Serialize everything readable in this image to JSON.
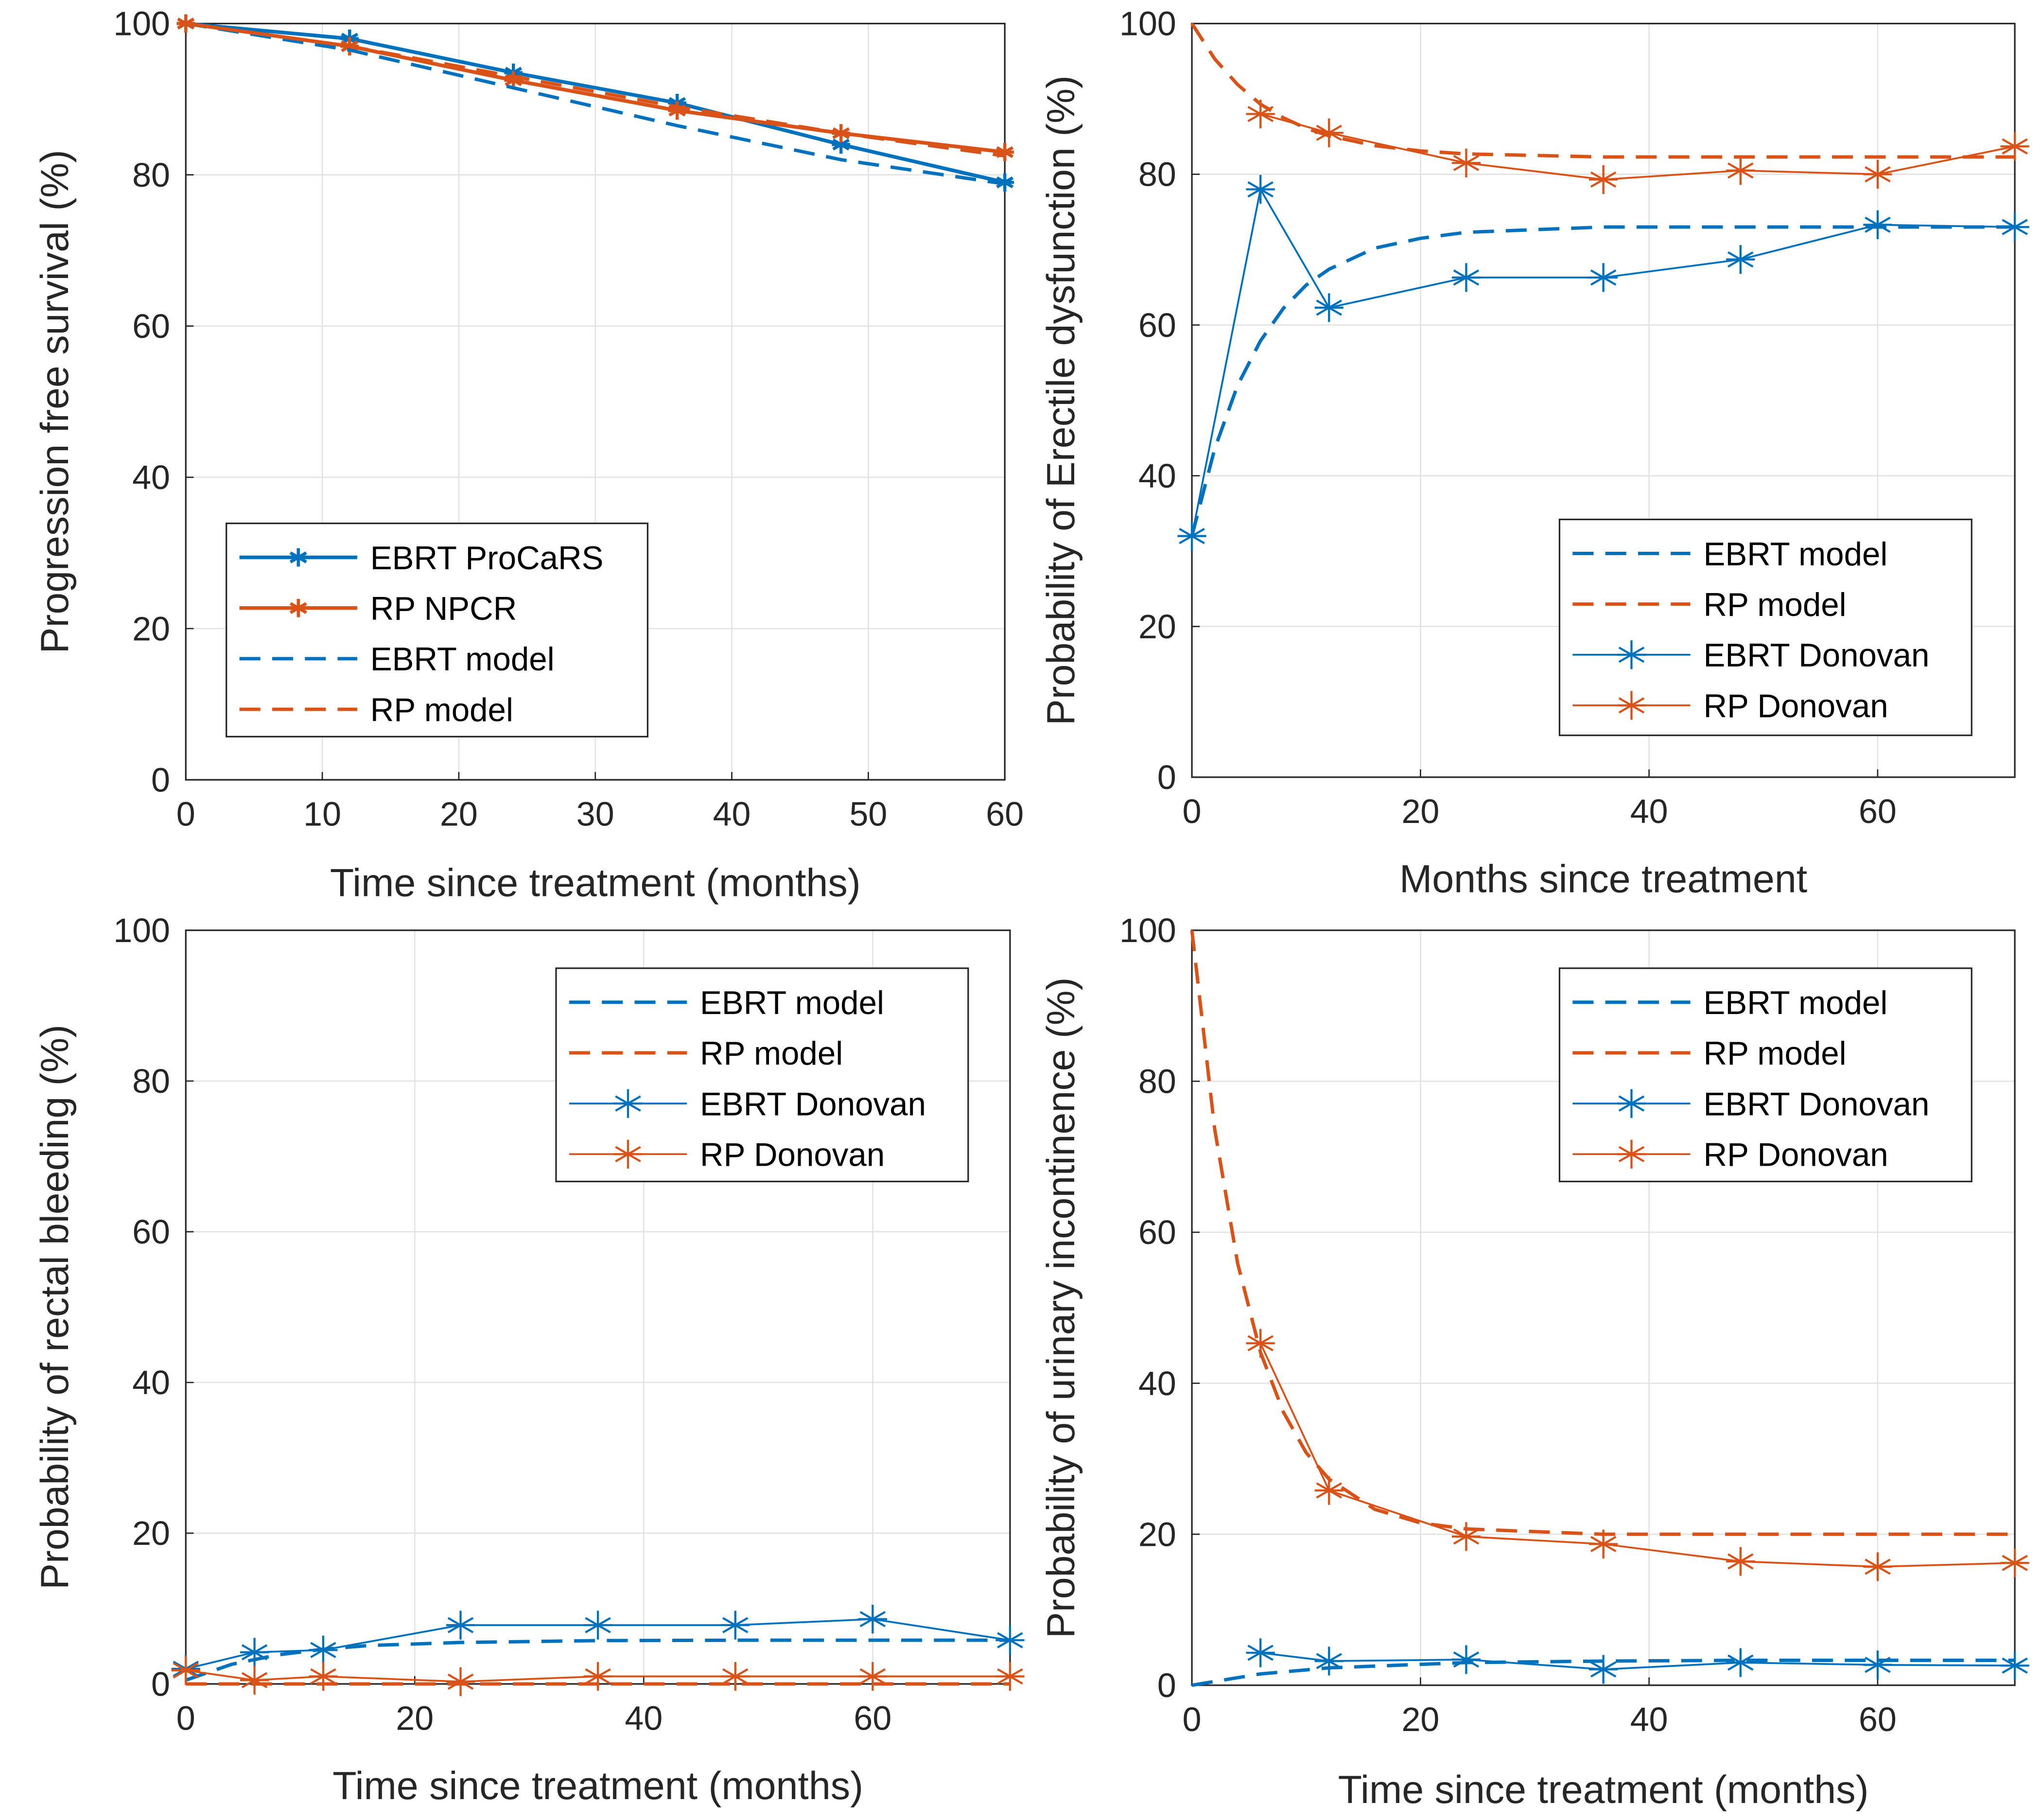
{
  "colors": {
    "blue": "#0072BD",
    "orange": "#D95319",
    "grid": "#e3e3e3",
    "axis": "#262626"
  },
  "chart_data": [
    {
      "type": "line",
      "xlabel": "Time since treatment (months)",
      "ylabel": "Progression free survival (%)",
      "xlim": [
        0,
        60
      ],
      "ylim": [
        0,
        100
      ],
      "xticks": [
        0,
        10,
        20,
        30,
        40,
        50,
        60
      ],
      "yticks": [
        0,
        20,
        40,
        60,
        80,
        100
      ],
      "grid": true,
      "legend_position": "bottom-left",
      "series": [
        {
          "name": "EBRT ProCaRS",
          "color": "blue",
          "style": "solid-thick",
          "marker": "small-star",
          "x": [
            0,
            12,
            24,
            36,
            48,
            60
          ],
          "y": [
            100,
            98,
            93.5,
            89.5,
            84,
            79
          ]
        },
        {
          "name": "RP NPCR",
          "color": "orange",
          "style": "solid-thick",
          "marker": "small-star",
          "x": [
            0,
            12,
            24,
            36,
            48,
            60
          ],
          "y": [
            100,
            97,
            92.5,
            88.5,
            85.5,
            83
          ]
        },
        {
          "name": "EBRT model",
          "color": "blue",
          "style": "dashed",
          "marker": "none",
          "x": [
            0,
            12,
            24,
            36,
            48,
            60
          ],
          "y": [
            100,
            96.5,
            91.5,
            86.5,
            82,
            78.8
          ]
        },
        {
          "name": "RP model",
          "color": "orange",
          "style": "dashed",
          "marker": "none",
          "x": [
            0,
            12,
            24,
            36,
            48,
            60
          ],
          "y": [
            100,
            97,
            93,
            89,
            85.5,
            82.5
          ]
        }
      ]
    },
    {
      "type": "line",
      "xlabel": "Months since treatment",
      "ylabel": "Probability of Erectile dysfunction (%)",
      "xlim": [
        0,
        72
      ],
      "ylim": [
        0,
        100
      ],
      "xticks": [
        0,
        20,
        40,
        60
      ],
      "yticks": [
        0,
        20,
        40,
        60,
        80,
        100
      ],
      "grid": true,
      "legend_position": "bottom-right",
      "series": [
        {
          "name": "EBRT model",
          "color": "blue",
          "style": "dashed",
          "marker": "none",
          "x": [
            0,
            2,
            4,
            6,
            8,
            10,
            12,
            16,
            20,
            24,
            36,
            48,
            60,
            72
          ],
          "y": [
            32,
            43.6,
            52,
            57.9,
            62.2,
            65.3,
            67.4,
            70.2,
            71.5,
            72.3,
            73,
            73,
            73,
            73
          ]
        },
        {
          "name": "RP model",
          "color": "orange",
          "style": "dashed",
          "marker": "none",
          "x": [
            0,
            2,
            4,
            6,
            8,
            10,
            12,
            16,
            20,
            24,
            36,
            48,
            60,
            72
          ],
          "y": [
            100,
            95.3,
            91.9,
            89.3,
            87.5,
            86.1,
            85.1,
            83.8,
            83.1,
            82.7,
            82.3,
            82.3,
            82.3,
            82.3
          ]
        },
        {
          "name": "EBRT Donovan",
          "color": "blue",
          "style": "solid-thin",
          "marker": "star",
          "x": [
            0,
            6,
            12,
            24,
            36,
            48,
            60,
            72
          ],
          "y": [
            32,
            78,
            62.3,
            66.3,
            66.3,
            68.7,
            73.3,
            73
          ]
        },
        {
          "name": "RP Donovan",
          "color": "orange",
          "style": "solid-thin",
          "marker": "star",
          "x": [
            6,
            12,
            24,
            36,
            48,
            60,
            72
          ],
          "y": [
            88,
            85.5,
            81.5,
            79.3,
            80.5,
            80,
            83.7
          ]
        }
      ]
    },
    {
      "type": "line",
      "xlabel": "Time since treatment (months)",
      "ylabel": "Probability of rectal bleeding (%)",
      "xlim": [
        0,
        72
      ],
      "ylim": [
        0,
        100
      ],
      "xticks": [
        0,
        20,
        40,
        60
      ],
      "yticks": [
        0,
        20,
        40,
        60,
        80,
        100
      ],
      "grid": true,
      "legend_position": "top-right",
      "series": [
        {
          "name": "EBRT model",
          "color": "blue",
          "style": "dashed",
          "marker": "none",
          "x": [
            0,
            4,
            8,
            12,
            16,
            24,
            36,
            48,
            60,
            72
          ],
          "y": [
            0.5,
            2.6,
            3.85,
            4.6,
            5.1,
            5.5,
            5.75,
            5.8,
            5.8,
            5.8
          ]
        },
        {
          "name": "RP model",
          "color": "orange",
          "style": "dashed",
          "marker": "none",
          "x": [
            0,
            12,
            24,
            36,
            48,
            60,
            72
          ],
          "y": [
            0,
            0,
            0,
            0,
            0,
            0,
            0
          ]
        },
        {
          "name": "EBRT Donovan",
          "color": "blue",
          "style": "solid-thin",
          "marker": "star",
          "x": [
            0,
            6,
            12,
            24,
            36,
            48,
            60,
            72
          ],
          "y": [
            2,
            4.2,
            4.5,
            7.8,
            7.8,
            7.8,
            8.6,
            5.8
          ]
        },
        {
          "name": "RP Donovan",
          "color": "orange",
          "style": "solid-thin",
          "marker": "star",
          "x": [
            0,
            6,
            12,
            24,
            36,
            48,
            60,
            72
          ],
          "y": [
            1.8,
            0.5,
            1,
            0.3,
            1,
            1,
            1,
            1
          ]
        }
      ]
    },
    {
      "type": "line",
      "xlabel": "Time since treatment (months)",
      "ylabel": "Probability of urinary incontinence (%)",
      "xlim": [
        0,
        72
      ],
      "ylim": [
        0,
        100
      ],
      "xticks": [
        0,
        20,
        40,
        60
      ],
      "yticks": [
        0,
        20,
        40,
        60,
        80,
        100
      ],
      "grid": true,
      "legend_position": "top-right",
      "series": [
        {
          "name": "EBRT model",
          "color": "blue",
          "style": "dashed",
          "marker": "none",
          "x": [
            0,
            6,
            12,
            24,
            36,
            48,
            60,
            72
          ],
          "y": [
            0,
            1.5,
            2.3,
            3.0,
            3.2,
            3.3,
            3.3,
            3.3
          ]
        },
        {
          "name": "RP model",
          "color": "orange",
          "style": "dashed",
          "marker": "none",
          "x": [
            0,
            2,
            4,
            6,
            8,
            10,
            12,
            16,
            20,
            24,
            36,
            48,
            60,
            72
          ],
          "y": [
            100,
            73.6,
            55.9,
            44.1,
            36.2,
            30.8,
            27.3,
            23.3,
            21.5,
            20.7,
            20,
            20,
            20,
            20
          ]
        },
        {
          "name": "EBRT Donovan",
          "color": "blue",
          "style": "solid-thin",
          "marker": "star",
          "x": [
            6,
            12,
            24,
            36,
            48,
            60,
            72
          ],
          "y": [
            4.3,
            3.2,
            3.4,
            2.1,
            3,
            2.7,
            2.6
          ]
        },
        {
          "name": "RP Donovan",
          "color": "orange",
          "style": "solid-thin",
          "marker": "star",
          "x": [
            6,
            12,
            24,
            36,
            48,
            60,
            72
          ],
          "y": [
            45.3,
            25.8,
            19.7,
            18.7,
            16.4,
            15.7,
            16.2
          ]
        }
      ]
    }
  ]
}
